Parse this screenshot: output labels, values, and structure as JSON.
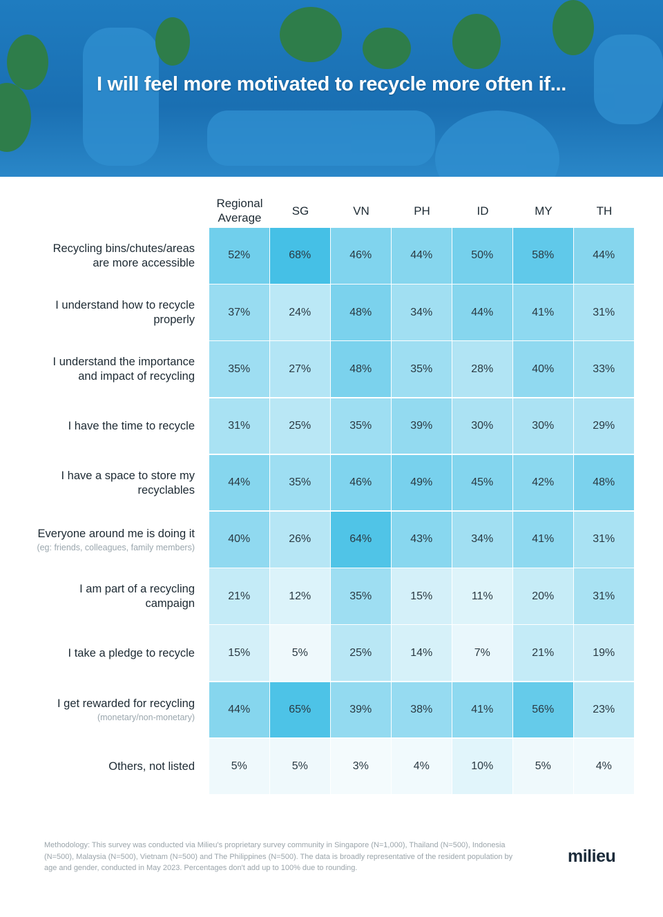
{
  "title": "I will feel more motivated to recycle more often if...",
  "chart_data": {
    "type": "heatmap",
    "title": "I will feel more motivated to recycle more often if...",
    "columns": [
      "Regional Average",
      "SG",
      "VN",
      "PH",
      "ID",
      "MY",
      "TH"
    ],
    "rows": [
      {
        "label": "Recycling bins/chutes/areas are more accessible",
        "sub": "",
        "values": [
          52,
          68,
          46,
          44,
          50,
          58,
          44
        ]
      },
      {
        "label": "I understand how to recycle properly",
        "sub": "",
        "values": [
          37,
          24,
          48,
          34,
          44,
          41,
          31
        ]
      },
      {
        "label": "I understand the importance and impact of recycling",
        "sub": "",
        "values": [
          35,
          27,
          48,
          35,
          28,
          40,
          33
        ]
      },
      {
        "label": "I have the time to recycle",
        "sub": "",
        "values": [
          31,
          25,
          35,
          39,
          30,
          30,
          29
        ]
      },
      {
        "label": "I have a space to store my recyclables",
        "sub": "",
        "values": [
          44,
          35,
          46,
          49,
          45,
          42,
          48
        ]
      },
      {
        "label": "Everyone around me is doing it",
        "sub": "(eg: friends, colleagues, family members)",
        "values": [
          40,
          26,
          64,
          43,
          34,
          41,
          31
        ]
      },
      {
        "label": "I am part of a recycling campaign",
        "sub": "",
        "values": [
          21,
          12,
          35,
          15,
          11,
          20,
          31
        ]
      },
      {
        "label": "I take a pledge to recycle",
        "sub": "",
        "values": [
          15,
          5,
          25,
          14,
          7,
          21,
          19
        ]
      },
      {
        "label": "I get rewarded for recycling",
        "sub": "(monetary/non-monetary)",
        "values": [
          44,
          65,
          39,
          38,
          41,
          56,
          23
        ]
      },
      {
        "label": "Others, not listed",
        "sub": "",
        "values": [
          5,
          5,
          3,
          4,
          10,
          5,
          4
        ]
      }
    ],
    "unit": "%",
    "colors": {
      "low": "#f4fbfd",
      "high": "#45c0e6"
    }
  },
  "footer": {
    "methodology": "Methodology: This survey was conducted via Milieu's proprietary survey community in Singapore (N=1,000), Thailand (N=500), Indonesia (N=500), Malaysia (N=500), Vietnam (N=500) and The Philippines (N=500). The data is broadly representative of the resident population by age and gender, conducted in May 2023. Percentages don't add up to 100% due to rounding.",
    "logo": "milieu"
  }
}
